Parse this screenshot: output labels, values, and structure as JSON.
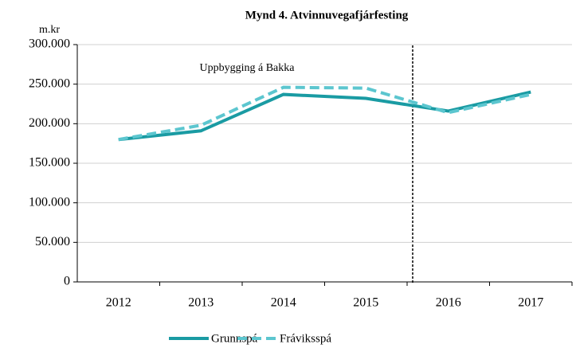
{
  "chart_data": {
    "type": "line",
    "title": "Mynd 4. Atvinnuvegafjárfesting",
    "y_label": "m.kr",
    "annotation": "Uppbygging á Bakka",
    "categories": [
      "2012",
      "2013",
      "2014",
      "2015",
      "2016",
      "2017"
    ],
    "series": [
      {
        "name": "Grunnspá",
        "color": "#1a9ba3",
        "dashed": false,
        "values": [
          180000,
          191000,
          237000,
          232000,
          216000,
          240000
        ]
      },
      {
        "name": "Fráviksspá",
        "color": "#5cc6cf",
        "dashed": true,
        "values": [
          180000,
          198000,
          246000,
          245000,
          214000,
          237000
        ]
      }
    ],
    "ylim": [
      0,
      300000
    ],
    "yticks": [
      {
        "value": 0,
        "label": "0"
      },
      {
        "value": 50000,
        "label": "50.000"
      },
      {
        "value": 100000,
        "label": "100.000"
      },
      {
        "value": 150000,
        "label": "150.000"
      },
      {
        "value": 200000,
        "label": "200.000"
      },
      {
        "value": 250000,
        "label": "250.000"
      },
      {
        "value": 300000,
        "label": "300.000"
      }
    ],
    "grid": true
  }
}
